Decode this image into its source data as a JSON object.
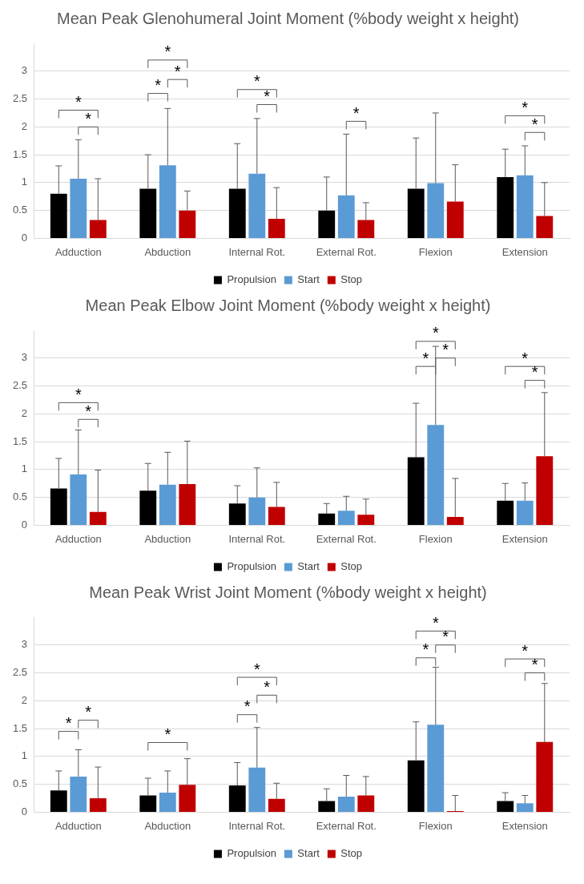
{
  "chart_data": [
    {
      "type": "bar",
      "title": "Mean Peak Glenohumeral Joint Moment (%body weight x height)",
      "categories": [
        "Adduction",
        "Abduction",
        "Internal Rot.",
        "External Rot.",
        "Flexion",
        "Extension"
      ],
      "series": [
        {
          "name": "Propulsion",
          "color": "#000000",
          "values": [
            0.8,
            0.89,
            0.89,
            0.5,
            0.89,
            1.1
          ],
          "errors": [
            [
              0.8,
              1.3
            ],
            [
              0.89,
              1.5
            ],
            [
              0.89,
              1.7
            ],
            [
              0.5,
              1.1
            ],
            [
              0.89,
              1.8
            ],
            [
              1.1,
              1.6
            ]
          ]
        },
        {
          "name": "Start",
          "color": "#5b9bd5",
          "values": [
            1.07,
            1.31,
            1.16,
            0.77,
            0.99,
            1.13
          ],
          "errors": [
            [
              1.07,
              1.77
            ],
            [
              1.31,
              2.33
            ],
            [
              1.16,
              2.15
            ],
            [
              0.77,
              1.87
            ],
            [
              0.99,
              2.25
            ],
            [
              1.13,
              1.66
            ]
          ]
        },
        {
          "name": "Stop",
          "color": "#c00000",
          "values": [
            0.33,
            0.5,
            0.35,
            0.33,
            0.66,
            0.4
          ],
          "errors": [
            [
              0.33,
              1.07
            ],
            [
              0.5,
              0.85
            ],
            [
              0.35,
              0.91
            ],
            [
              0.33,
              0.64
            ],
            [
              0.66,
              1.32
            ],
            [
              0.4,
              1.0
            ]
          ]
        }
      ],
      "ylim": [
        0,
        3.5
      ],
      "yticks": [
        0,
        0.5,
        1,
        1.5,
        2,
        2.5,
        3
      ],
      "grid": "y",
      "legend": "bottom",
      "annotations": [
        "*",
        "*",
        "*",
        "*",
        "*",
        "*",
        "*",
        "*",
        "*",
        "*"
      ]
    },
    {
      "type": "bar",
      "title": "Mean Peak Elbow Joint Moment (%body weight x height)",
      "categories": [
        "Adduction",
        "Abduction",
        "Internal Rot.",
        "External Rot.",
        "Flexion",
        "Extension"
      ],
      "series": [
        {
          "name": "Propulsion",
          "color": "#000000",
          "values": [
            0.66,
            0.62,
            0.39,
            0.21,
            1.22,
            0.44
          ],
          "errors": [
            [
              0.66,
              1.2
            ],
            [
              0.62,
              1.11
            ],
            [
              0.39,
              0.71
            ],
            [
              0.21,
              0.39
            ],
            [
              1.22,
              2.19
            ],
            [
              0.44,
              0.75
            ]
          ]
        },
        {
          "name": "Start",
          "color": "#5b9bd5",
          "values": [
            0.91,
            0.73,
            0.5,
            0.26,
            1.8,
            0.44
          ],
          "errors": [
            [
              0.91,
              1.71
            ],
            [
              0.73,
              1.31
            ],
            [
              0.5,
              1.03
            ],
            [
              0.26,
              0.52
            ],
            [
              1.8,
              3.21
            ],
            [
              0.44,
              0.76
            ]
          ]
        },
        {
          "name": "Stop",
          "color": "#c00000",
          "values": [
            0.24,
            0.74,
            0.33,
            0.19,
            0.15,
            1.24
          ],
          "errors": [
            [
              0.24,
              0.99
            ],
            [
              0.74,
              1.51
            ],
            [
              0.33,
              0.77
            ],
            [
              0.19,
              0.47
            ],
            [
              0.15,
              0.84
            ],
            [
              1.24,
              2.38
            ]
          ]
        }
      ],
      "ylim": [
        0,
        3.5
      ],
      "yticks": [
        0,
        0.5,
        1,
        1.5,
        2,
        2.5,
        3
      ],
      "grid": "y",
      "legend": "bottom",
      "annotations": [
        "*",
        "*",
        "*",
        "*",
        "*",
        "*",
        "*"
      ]
    },
    {
      "type": "bar",
      "title": "Mean Peak Wrist Joint Moment (%body weight x height)",
      "categories": [
        "Adduction",
        "Abduction",
        "Internal Rot.",
        "External Rot.",
        "Flexion",
        "Extension"
      ],
      "series": [
        {
          "name": "Propulsion",
          "color": "#000000",
          "values": [
            0.39,
            0.3,
            0.48,
            0.2,
            0.93,
            0.2
          ],
          "errors": [
            [
              0.39,
              0.74
            ],
            [
              0.3,
              0.61
            ],
            [
              0.48,
              0.89
            ],
            [
              0.2,
              0.42
            ],
            [
              0.93,
              1.62
            ],
            [
              0.2,
              0.35
            ]
          ]
        },
        {
          "name": "Start",
          "color": "#5b9bd5",
          "values": [
            0.64,
            0.35,
            0.8,
            0.28,
            1.57,
            0.16
          ],
          "errors": [
            [
              0.64,
              1.12
            ],
            [
              0.35,
              0.74
            ],
            [
              0.8,
              1.52
            ],
            [
              0.28,
              0.66
            ],
            [
              1.57,
              2.6
            ],
            [
              0.16,
              0.3
            ]
          ]
        },
        {
          "name": "Stop",
          "color": "#c00000",
          "values": [
            0.25,
            0.49,
            0.24,
            0.3,
            0.02,
            1.26
          ],
          "errors": [
            [
              0.25,
              0.81
            ],
            [
              0.49,
              0.96
            ],
            [
              0.24,
              0.52
            ],
            [
              0.3,
              0.64
            ],
            [
              0.02,
              0.3
            ],
            [
              1.26,
              2.31
            ]
          ]
        }
      ],
      "ylim": [
        0,
        3.5
      ],
      "yticks": [
        0,
        0.5,
        1,
        1.5,
        2,
        2.5,
        3
      ],
      "grid": "y",
      "legend": "bottom",
      "annotations": [
        "*",
        "*",
        "*",
        "*",
        "*",
        "*",
        "*",
        "*",
        "*",
        "*",
        "*"
      ]
    }
  ]
}
